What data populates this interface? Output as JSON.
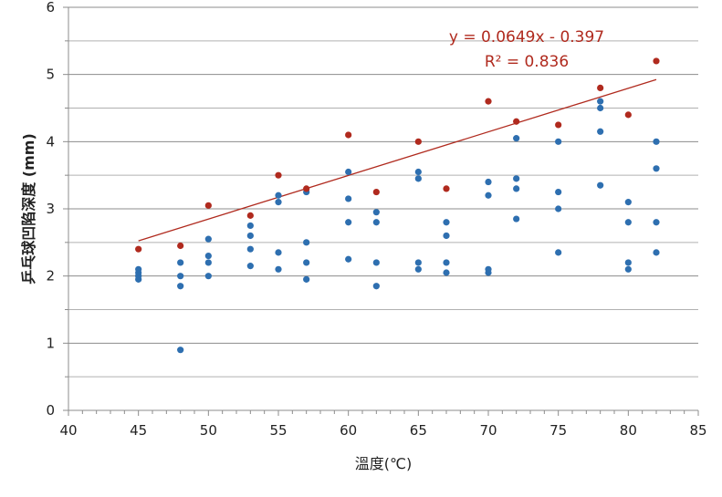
{
  "chart_data": {
    "type": "scatter",
    "xlabel": "溫度(℃)",
    "ylabel": "乒乓球凹陷深度 (mm)",
    "xlim": [
      40,
      85
    ],
    "ylim": [
      0,
      6
    ],
    "x_ticks": [
      "40",
      "45",
      "50",
      "55",
      "60",
      "65",
      "70",
      "75",
      "80",
      "85"
    ],
    "y_ticks": [
      "0",
      "1",
      "2",
      "3",
      "4",
      "5",
      "6"
    ],
    "x_minor_step": 1,
    "y_minor_step": 0.5,
    "grid": "horizontal",
    "legend": "none",
    "colors": {
      "blue": "#2e6fb0",
      "red": "#b02a1e"
    },
    "series": [
      {
        "color": "#2e6fb0",
        "points": [
          [
            45,
            1.95
          ],
          [
            45,
            2.0
          ],
          [
            45,
            2.05
          ],
          [
            45,
            2.1
          ],
          [
            48,
            0.9
          ],
          [
            48,
            1.85
          ],
          [
            48,
            2.0
          ],
          [
            48,
            2.2
          ],
          [
            50,
            2.0
          ],
          [
            50,
            2.2
          ],
          [
            50,
            2.3
          ],
          [
            50,
            2.55
          ],
          [
            53,
            2.15
          ],
          [
            53,
            2.4
          ],
          [
            53,
            2.6
          ],
          [
            53,
            2.75
          ],
          [
            55,
            2.1
          ],
          [
            55,
            2.35
          ],
          [
            55,
            3.1
          ],
          [
            55,
            3.2
          ],
          [
            57,
            1.95
          ],
          [
            57,
            2.2
          ],
          [
            57,
            2.5
          ],
          [
            57,
            3.25
          ],
          [
            60,
            2.25
          ],
          [
            60,
            2.8
          ],
          [
            60,
            3.15
          ],
          [
            60,
            3.55
          ],
          [
            62,
            1.85
          ],
          [
            62,
            2.2
          ],
          [
            62,
            2.8
          ],
          [
            62,
            2.95
          ],
          [
            65,
            2.1
          ],
          [
            65,
            2.2
          ],
          [
            65,
            3.45
          ],
          [
            65,
            3.55
          ],
          [
            67,
            2.05
          ],
          [
            67,
            2.2
          ],
          [
            67,
            2.6
          ],
          [
            67,
            2.8
          ],
          [
            70,
            2.05
          ],
          [
            70,
            2.1
          ],
          [
            70,
            3.2
          ],
          [
            70,
            3.4
          ],
          [
            72,
            2.85
          ],
          [
            72,
            3.3
          ],
          [
            72,
            3.45
          ],
          [
            72,
            4.05
          ],
          [
            75,
            2.35
          ],
          [
            75,
            3.0
          ],
          [
            75,
            3.25
          ],
          [
            75,
            4.0
          ],
          [
            78,
            3.35
          ],
          [
            78,
            4.15
          ],
          [
            78,
            4.5
          ],
          [
            78,
            4.6
          ],
          [
            80,
            2.1
          ],
          [
            80,
            2.2
          ],
          [
            80,
            2.8
          ],
          [
            80,
            3.1
          ],
          [
            82,
            2.35
          ],
          [
            82,
            2.8
          ],
          [
            82,
            3.6
          ],
          [
            82,
            4.0
          ]
        ]
      },
      {
        "color": "#b02a1e",
        "points": [
          [
            45,
            2.4
          ],
          [
            48,
            2.45
          ],
          [
            50,
            3.05
          ],
          [
            53,
            2.9
          ],
          [
            55,
            3.5
          ],
          [
            57,
            3.3
          ],
          [
            60,
            4.1
          ],
          [
            62,
            3.25
          ],
          [
            65,
            4.0
          ],
          [
            67,
            3.3
          ],
          [
            70,
            4.6
          ],
          [
            72,
            4.3
          ],
          [
            75,
            4.25
          ],
          [
            78,
            4.8
          ],
          [
            80,
            4.4
          ],
          [
            82,
            5.2
          ]
        ]
      }
    ],
    "trendline": {
      "color": "#b02a1e",
      "slope": 0.0649,
      "intercept": -0.397,
      "x_range": [
        45,
        82
      ],
      "equation": "y = 0.0649x - 0.397",
      "r_squared": "R² = 0.836"
    }
  }
}
